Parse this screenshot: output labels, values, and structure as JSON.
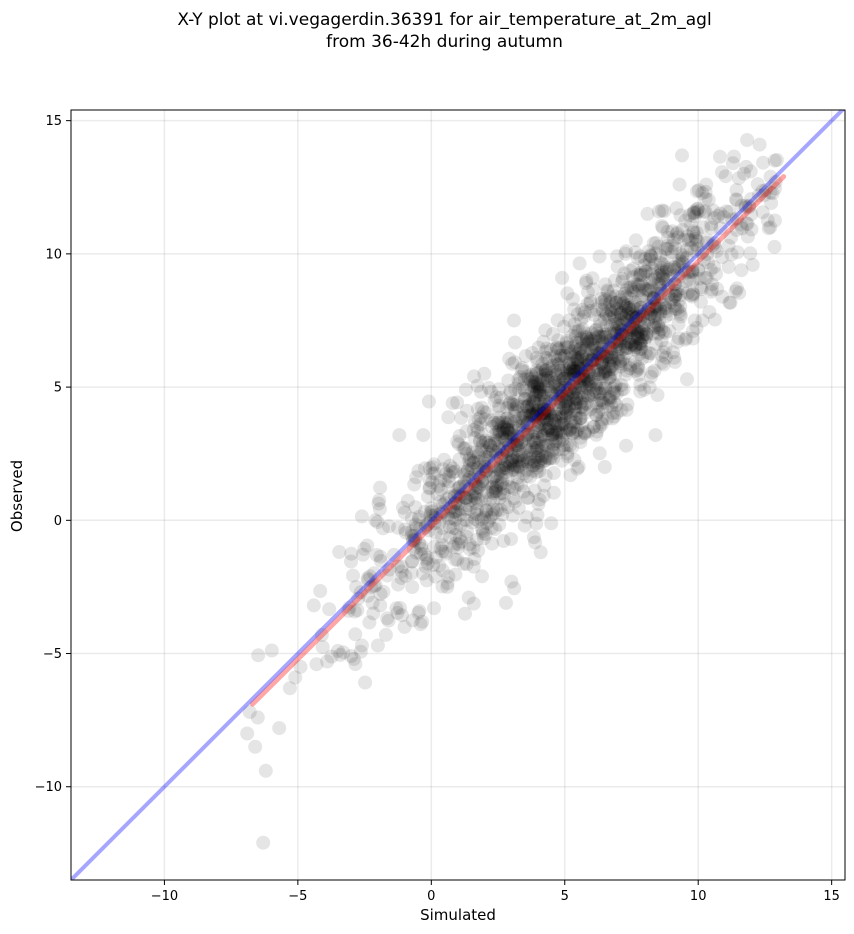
{
  "chart_data": {
    "type": "scatter",
    "title": "X-Y plot at vi.vegagerdin.36391 for air_temperature_at_2m_agl",
    "subtitle": "from 36-42h during autumn",
    "xlabel": "Simulated",
    "ylabel": "Observed",
    "xlim": [
      -13.5,
      15.5
    ],
    "ylim": [
      -13.5,
      15.4
    ],
    "xticks": [
      -10,
      -5,
      0,
      5,
      10,
      15
    ],
    "xtick_labels": [
      "−10",
      "−5",
      "0",
      "5",
      "10",
      "15"
    ],
    "yticks": [
      -10,
      -5,
      0,
      5,
      10,
      15
    ],
    "ytick_labels": [
      "−10",
      "−5",
      "0",
      "5",
      "10",
      "15"
    ],
    "grid": true,
    "point_color": "#000000",
    "point_opacity": 0.1,
    "point_count_estimate": 1800,
    "identity_line": {
      "color": "#0000ff",
      "opacity": 0.35,
      "x": [
        -13.5,
        15.5
      ],
      "y": [
        -13.5,
        15.5
      ]
    },
    "fit_line": {
      "color": "#ff0000",
      "opacity": 0.35,
      "x": [
        -6.7,
        13.2
      ],
      "y": [
        -6.9,
        12.9
      ]
    },
    "sample_points": [
      [
        -6.8,
        -7.2
      ],
      [
        -6.6,
        -8.5
      ],
      [
        -6.2,
        -9.4
      ],
      [
        -6.3,
        -12.1
      ],
      [
        -6.5,
        -7.4
      ],
      [
        -6.9,
        -8.0
      ],
      [
        -5.7,
        -7.8
      ],
      [
        -5.3,
        -6.3
      ],
      [
        -4.9,
        -5.5
      ],
      [
        -4.3,
        -5.4
      ],
      [
        -3.9,
        -5.3
      ],
      [
        -3.5,
        -4.9
      ],
      [
        -2.9,
        -5.2
      ],
      [
        -2.6,
        -4.7
      ],
      [
        -2.0,
        -4.7
      ],
      [
        -1.7,
        -4.3
      ],
      [
        -1.0,
        -4.0
      ],
      [
        -0.4,
        -3.9
      ],
      [
        0.1,
        -3.3
      ],
      [
        0.6,
        -2.5
      ],
      [
        1.4,
        -2.9
      ],
      [
        1.9,
        -2.1
      ],
      [
        2.8,
        -3.1
      ],
      [
        3.0,
        -2.3
      ],
      [
        4.1,
        -1.2
      ],
      [
        3.5,
        -0.2
      ],
      [
        -2.1,
        0.0
      ],
      [
        -1.2,
        3.2
      ],
      [
        -0.3,
        3.2
      ],
      [
        0.1,
        2.1
      ],
      [
        0.8,
        4.4
      ],
      [
        1.6,
        5.4
      ],
      [
        2.2,
        2.8
      ],
      [
        3.1,
        7.5
      ],
      [
        4.2,
        6.7
      ],
      [
        4.9,
        9.1
      ],
      [
        5.3,
        8.3
      ],
      [
        6.3,
        9.9
      ],
      [
        7.3,
        10.1
      ],
      [
        8.1,
        11.5
      ],
      [
        9.3,
        12.6
      ],
      [
        10.3,
        12.6
      ],
      [
        11.3,
        13.4
      ],
      [
        12.3,
        14.1
      ],
      [
        12.9,
        12.7
      ],
      [
        12.7,
        11.0
      ],
      [
        11.4,
        8.6
      ],
      [
        10.1,
        8.2
      ],
      [
        9.8,
        7.1
      ],
      [
        9.1,
        6.1
      ],
      [
        8.4,
        3.2
      ],
      [
        7.3,
        2.8
      ],
      [
        6.5,
        2.0
      ],
      [
        5.6,
        3.1
      ],
      [
        5.4,
        4.6
      ],
      [
        6.1,
        6.2
      ],
      [
        4.5,
        4.8
      ],
      [
        3.9,
        3.3
      ],
      [
        3.1,
        1.9
      ],
      [
        2.4,
        1.2
      ],
      [
        1.6,
        0.9
      ],
      [
        0.9,
        0.3
      ],
      [
        0.3,
        -0.1
      ],
      [
        -0.6,
        -0.7
      ],
      [
        -1.4,
        -1.3
      ],
      [
        -2.3,
        -2.1
      ],
      [
        -3.1,
        -3.4
      ],
      [
        -4.1,
        -4.3
      ],
      [
        -5.1,
        -5.9
      ],
      [
        7.6,
        7.1
      ],
      [
        8.6,
        8.4
      ],
      [
        9.6,
        9.3
      ],
      [
        10.6,
        10.4
      ],
      [
        11.6,
        11.1
      ],
      [
        6.9,
        8.4
      ],
      [
        4.7,
        6.5
      ],
      [
        3.6,
        5.4
      ],
      [
        2.6,
        4.6
      ],
      [
        1.2,
        2.7
      ],
      [
        5.1,
        2.4
      ]
    ]
  }
}
